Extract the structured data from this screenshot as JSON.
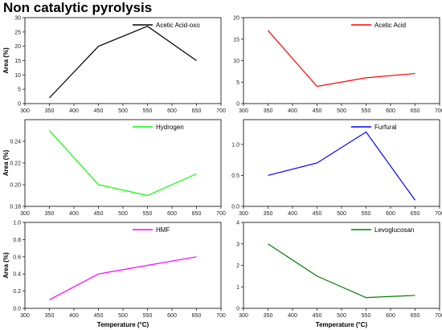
{
  "title": "Non catalytic pyrolysis",
  "chart_data": [
    {
      "type": "line",
      "series": [
        {
          "name": "Acetic Acid-oxo",
          "x": [
            350,
            450,
            550,
            650
          ],
          "y": [
            2,
            20,
            27,
            15
          ],
          "color": "#000000"
        }
      ],
      "xlim": [
        300,
        700
      ],
      "ylim": [
        0,
        30
      ],
      "xticks": [
        300,
        350,
        400,
        450,
        500,
        550,
        600,
        650,
        700
      ],
      "yticks": [
        0,
        5,
        10,
        15,
        20,
        25,
        30
      ],
      "ytick_labels": [
        "0",
        "5",
        "10",
        "15",
        "20",
        "25",
        "30"
      ],
      "ylabel": "Area (%)",
      "xlabel": "",
      "legend": "top-right"
    },
    {
      "type": "line",
      "series": [
        {
          "name": "Acetic Acid",
          "x": [
            350,
            450,
            550,
            650
          ],
          "y": [
            17,
            4,
            6,
            7
          ],
          "color": "#ff0000"
        }
      ],
      "xlim": [
        300,
        700
      ],
      "ylim": [
        0,
        20
      ],
      "xticks": [
        300,
        350,
        400,
        450,
        500,
        550,
        600,
        650,
        700
      ],
      "yticks": [
        0,
        5,
        10,
        15,
        20
      ],
      "ytick_labels": [
        "0",
        "5",
        "10",
        "15",
        "20"
      ],
      "ylabel": "",
      "xlabel": "",
      "legend": "top-right"
    },
    {
      "type": "line",
      "series": [
        {
          "name": "Hydrogen",
          "x": [
            350,
            450,
            550,
            650
          ],
          "y": [
            0.25,
            0.2,
            0.19,
            0.21
          ],
          "color": "#00ff00"
        }
      ],
      "xlim": [
        300,
        700
      ],
      "ylim": [
        0.18,
        0.26
      ],
      "xticks": [
        300,
        350,
        400,
        450,
        500,
        550,
        600,
        650,
        700
      ],
      "yticks": [
        0.18,
        0.2,
        0.22,
        0.24
      ],
      "ytick_labels": [
        "0.18",
        "0.20",
        "0.22",
        "0.24"
      ],
      "ylabel": "Area (%)",
      "xlabel": "",
      "legend": "top-right"
    },
    {
      "type": "line",
      "series": [
        {
          "name": "Furfural",
          "x": [
            350,
            450,
            550,
            650
          ],
          "y": [
            0.5,
            0.7,
            1.2,
            0.1
          ],
          "color": "#0000ff"
        }
      ],
      "xlim": [
        300,
        700
      ],
      "ylim": [
        0,
        1.4
      ],
      "xticks": [
        300,
        350,
        400,
        450,
        500,
        550,
        600,
        650,
        700
      ],
      "yticks": [
        0,
        0.5,
        1.0
      ],
      "ytick_labels": [
        "0.0",
        "0.5",
        "1.0"
      ],
      "ylabel": "",
      "xlabel": "",
      "legend": "top-right"
    },
    {
      "type": "line",
      "series": [
        {
          "name": "HMF",
          "x": [
            350,
            450,
            550,
            650
          ],
          "y": [
            0.1,
            0.4,
            0.5,
            0.6
          ],
          "color": "#ff00ff"
        }
      ],
      "xlim": [
        300,
        700
      ],
      "ylim": [
        0,
        1.0
      ],
      "xticks": [
        300,
        350,
        400,
        450,
        500,
        550,
        600,
        650,
        700
      ],
      "yticks": [
        0,
        0.2,
        0.4,
        0.6,
        0.8,
        1.0
      ],
      "ytick_labels": [
        "0.0",
        "0.2",
        "0.4",
        "0.6",
        "0.8",
        "1.0"
      ],
      "ylabel": "Area (%)",
      "xlabel": "Temperature (°C)",
      "legend": "top-right"
    },
    {
      "type": "line",
      "series": [
        {
          "name": "Levoglucosan",
          "x": [
            350,
            450,
            550,
            650
          ],
          "y": [
            3.0,
            1.5,
            0.5,
            0.6
          ],
          "color": "#007f00"
        }
      ],
      "xlim": [
        300,
        700
      ],
      "ylim": [
        0,
        4
      ],
      "xticks": [
        300,
        350,
        400,
        450,
        500,
        550,
        600,
        650,
        700
      ],
      "yticks": [
        0,
        1,
        2,
        3,
        4
      ],
      "ytick_labels": [
        "0",
        "1",
        "2",
        "3",
        "4"
      ],
      "ylabel": "",
      "xlabel": "Temperature (°C)",
      "legend": "top-right"
    }
  ]
}
